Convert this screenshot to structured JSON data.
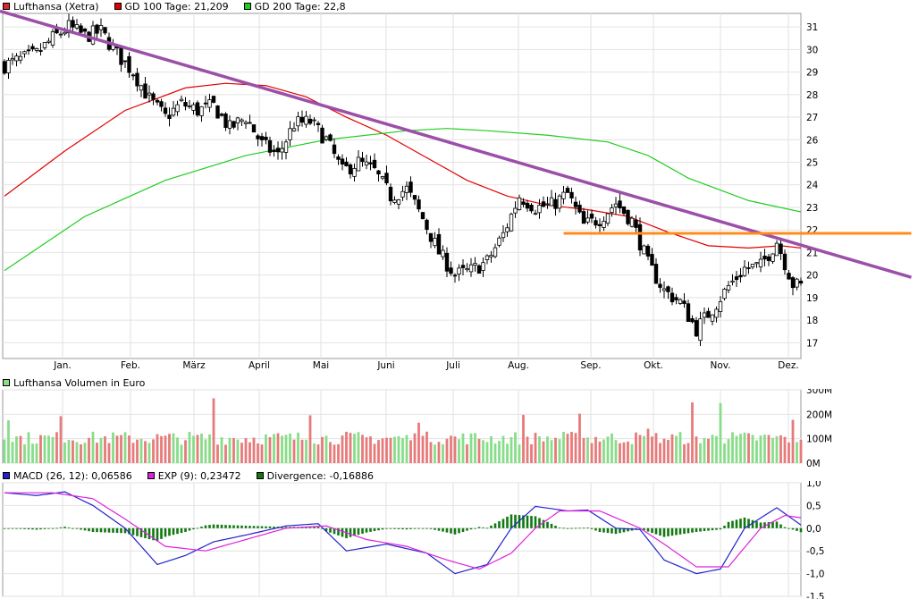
{
  "legends": {
    "price": [
      {
        "label": "Lufthansa (Xetra)",
        "color": "#d42a2a"
      },
      {
        "label": "GD 100 Tage: 21,209",
        "color": "#e00000"
      },
      {
        "label": "GD 200 Tage: 22,8",
        "color": "#22cc22"
      }
    ],
    "volume": [
      {
        "label": "Lufthansa Volumen in Euro",
        "color": "#88dd88"
      }
    ],
    "macd": [
      {
        "label": "MACD (26, 12): 0,06586",
        "color": "#2222cc"
      },
      {
        "label": "EXP (9): 0,23472",
        "color": "#dd22dd"
      },
      {
        "label": "Divergence: -0,16886",
        "color": "#117711"
      }
    ]
  },
  "chart_data": [
    {
      "type": "candlestick",
      "title": "Lufthansa (Xetra)",
      "x_labels": [
        "Jan.",
        "Feb.",
        "März",
        "April",
        "Mai",
        "Juni",
        "Juli",
        "Aug.",
        "Sep.",
        "Okt.",
        "Nov.",
        "Dez."
      ],
      "y_ticks": [
        17,
        18,
        19,
        20,
        21,
        22,
        23,
        24,
        25,
        26,
        27,
        28,
        29,
        30,
        31
      ],
      "ylim": [
        16.3,
        31.6
      ],
      "close_path": [
        [
          0,
          29.3
        ],
        [
          8,
          29.8
        ],
        [
          12,
          30.5
        ],
        [
          16,
          31.0
        ],
        [
          20,
          30.6
        ],
        [
          24,
          30.8
        ],
        [
          28,
          29.8
        ],
        [
          32,
          29.0
        ],
        [
          36,
          27.8
        ],
        [
          40,
          27.0
        ],
        [
          44,
          27.6
        ],
        [
          48,
          27.3
        ],
        [
          52,
          27.5
        ],
        [
          56,
          26.5
        ],
        [
          60,
          27.0
        ],
        [
          64,
          25.8
        ],
        [
          68,
          25.3
        ],
        [
          72,
          26.7
        ],
        [
          76,
          26.8
        ],
        [
          80,
          26.0
        ],
        [
          84,
          24.6
        ],
        [
          88,
          25.0
        ],
        [
          92,
          24.6
        ],
        [
          96,
          23.5
        ],
        [
          100,
          23.8
        ],
        [
          104,
          22.5
        ],
        [
          108,
          21.0
        ],
        [
          112,
          20.0
        ],
        [
          116,
          20.2
        ],
        [
          120,
          20.6
        ],
        [
          124,
          21.8
        ],
        [
          128,
          23.5
        ],
        [
          132,
          23.0
        ],
        [
          136,
          23.1
        ],
        [
          140,
          23.6
        ],
        [
          144,
          22.2
        ],
        [
          148,
          22.5
        ],
        [
          152,
          23.2
        ],
        [
          156,
          22.4
        ],
        [
          160,
          20.5
        ],
        [
          164,
          19.3
        ],
        [
          168,
          18.8
        ],
        [
          172,
          17.6
        ],
        [
          176,
          18.5
        ],
        [
          180,
          19.5
        ],
        [
          184,
          20.3
        ],
        [
          188,
          20.4
        ],
        [
          192,
          21.5
        ],
        [
          196,
          19.6
        ],
        [
          198,
          19.5
        ]
      ],
      "series": [
        {
          "name": "GD 100 Tage",
          "color": "#e00000",
          "values": [
            [
              0,
              23.5
            ],
            [
              15,
              25.5
            ],
            [
              30,
              27.3
            ],
            [
              45,
              28.3
            ],
            [
              55,
              28.5
            ],
            [
              65,
              28.4
            ],
            [
              75,
              27.9
            ],
            [
              85,
              27.0
            ],
            [
              95,
              26.2
            ],
            [
              105,
              25.2
            ],
            [
              115,
              24.2
            ],
            [
              125,
              23.5
            ],
            [
              135,
              23.1
            ],
            [
              145,
              22.9
            ],
            [
              155,
              22.6
            ],
            [
              165,
              21.9
            ],
            [
              175,
              21.3
            ],
            [
              185,
              21.2
            ],
            [
              193,
              21.3
            ],
            [
              198,
              21.2
            ]
          ]
        },
        {
          "name": "GD 200 Tage",
          "color": "#22cc22",
          "values": [
            [
              0,
              20.2
            ],
            [
              20,
              22.6
            ],
            [
              40,
              24.2
            ],
            [
              60,
              25.3
            ],
            [
              80,
              26.0
            ],
            [
              100,
              26.4
            ],
            [
              110,
              26.5
            ],
            [
              120,
              26.4
            ],
            [
              135,
              26.2
            ],
            [
              150,
              25.9
            ],
            [
              160,
              25.3
            ],
            [
              170,
              24.3
            ],
            [
              185,
              23.3
            ],
            [
              198,
              22.8
            ]
          ]
        }
      ],
      "trendline": {
        "color": "#9b4fa8",
        "from": [
          0,
          31.7
        ],
        "to": [
          225,
          19.9
        ]
      },
      "horizontal_line": {
        "color": "#ff8c1a",
        "value": 21.85,
        "from_x": 139,
        "to_x": 225
      }
    },
    {
      "type": "bar",
      "title": "Lufthansa Volumen in Euro",
      "y_ticks": [
        "0M",
        "100M",
        "200M",
        "300M"
      ],
      "ylim": [
        0,
        300
      ]
    },
    {
      "type": "line",
      "title": "MACD",
      "y_ticks": [
        "1,0",
        "0,5",
        "0,0",
        "-0,5",
        "-1,0",
        "-1,5"
      ],
      "ylim": [
        -1.5,
        1.0
      ],
      "series": [
        {
          "name": "MACD (26, 12)",
          "color": "#2222cc",
          "values": [
            [
              0,
              0.78
            ],
            [
              8,
              0.72
            ],
            [
              15,
              0.8
            ],
            [
              22,
              0.5
            ],
            [
              30,
              0.0
            ],
            [
              38,
              -0.8
            ],
            [
              45,
              -0.6
            ],
            [
              52,
              -0.3
            ],
            [
              60,
              -0.15
            ],
            [
              70,
              0.05
            ],
            [
              78,
              0.1
            ],
            [
              85,
              -0.5
            ],
            [
              95,
              -0.35
            ],
            [
              105,
              -0.55
            ],
            [
              112,
              -1.0
            ],
            [
              120,
              -0.8
            ],
            [
              126,
              0.0
            ],
            [
              132,
              0.48
            ],
            [
              140,
              0.38
            ],
            [
              145,
              0.4
            ],
            [
              152,
              0.0
            ],
            [
              158,
              -0.03
            ],
            [
              164,
              -0.7
            ],
            [
              172,
              -1.0
            ],
            [
              178,
              -0.9
            ],
            [
              184,
              0.0
            ],
            [
              192,
              0.45
            ],
            [
              198,
              0.07
            ]
          ]
        },
        {
          "name": "EXP (9)",
          "color": "#dd22dd",
          "values": [
            [
              0,
              0.78
            ],
            [
              12,
              0.78
            ],
            [
              22,
              0.65
            ],
            [
              30,
              0.2
            ],
            [
              40,
              -0.4
            ],
            [
              50,
              -0.5
            ],
            [
              60,
              -0.25
            ],
            [
              70,
              0.0
            ],
            [
              80,
              0.05
            ],
            [
              90,
              -0.25
            ],
            [
              100,
              -0.4
            ],
            [
              110,
              -0.7
            ],
            [
              118,
              -0.9
            ],
            [
              126,
              -0.55
            ],
            [
              132,
              0.0
            ],
            [
              138,
              0.38
            ],
            [
              148,
              0.38
            ],
            [
              158,
              0.0
            ],
            [
              164,
              -0.35
            ],
            [
              172,
              -0.85
            ],
            [
              180,
              -0.85
            ],
            [
              188,
              0.0
            ],
            [
              194,
              0.28
            ],
            [
              198,
              0.23
            ]
          ]
        },
        {
          "name": "Divergence",
          "color": "#117711"
        }
      ]
    }
  ]
}
